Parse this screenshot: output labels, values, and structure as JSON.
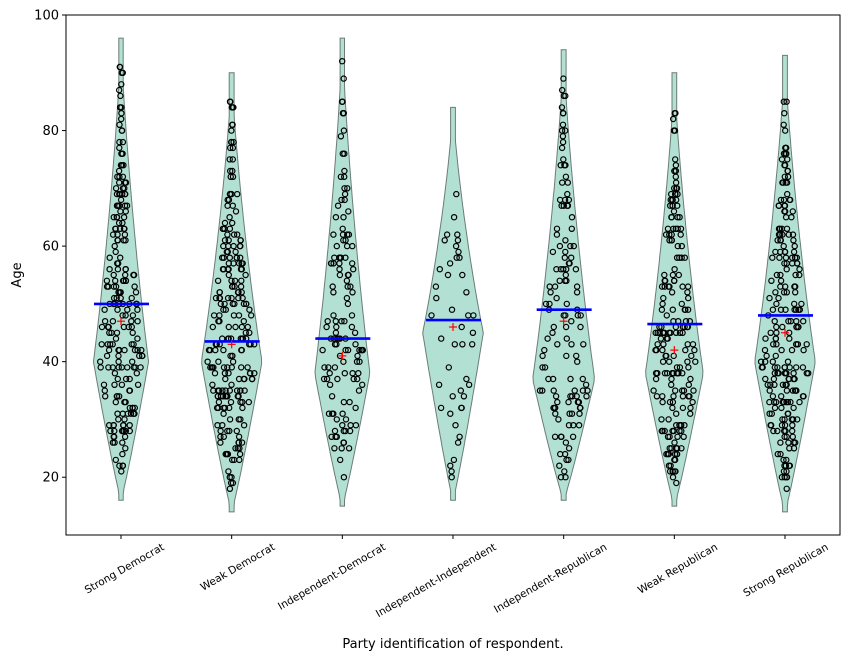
{
  "chart_data": {
    "type": "violin",
    "title": "",
    "xlabel": "Party identification of respondent.",
    "ylabel": "Age",
    "ylim": [
      10,
      100
    ],
    "yticks": [
      20,
      40,
      60,
      80,
      100
    ],
    "grid": false,
    "legend": null,
    "categories": [
      "Strong Democrat",
      "Weak Democrat",
      "Independent-Democrat",
      "Independent-Independent",
      "Independent-Republican",
      "Weak Republican",
      "Strong Republican"
    ],
    "series": [
      {
        "name": "Strong Democrat",
        "min": 16,
        "max": 96,
        "median": 50,
        "mean": 47,
        "point_count_approx": 220,
        "mode_age": 40,
        "max_half_width": 40
      },
      {
        "name": "Weak Democrat",
        "min": 14,
        "max": 90,
        "median": 43.5,
        "mean": 43,
        "point_count_approx": 230,
        "mode_age": 40,
        "max_half_width": 44
      },
      {
        "name": "Independent-Democrat",
        "min": 15,
        "max": 96,
        "median": 44,
        "mean": 41,
        "point_count_approx": 130,
        "mode_age": 38,
        "max_half_width": 40
      },
      {
        "name": "Independent-Independent",
        "min": 16,
        "max": 84,
        "median": 47.2,
        "mean": 46,
        "point_count_approx": 45,
        "mode_age": 45,
        "max_half_width": 44
      },
      {
        "name": "Independent-Republican",
        "min": 16,
        "max": 94,
        "median": 49,
        "mean": 47,
        "point_count_approx": 130,
        "mode_age": 37,
        "max_half_width": 45
      },
      {
        "name": "Weak Republican",
        "min": 15,
        "max": 90,
        "median": 46.5,
        "mean": 42,
        "point_count_approx": 200,
        "mode_age": 38,
        "max_half_width": 42
      },
      {
        "name": "Strong Republican",
        "min": 14,
        "max": 93,
        "median": 48,
        "mean": 45,
        "point_count_approx": 230,
        "mode_age": 40,
        "max_half_width": 44
      }
    ],
    "markers": {
      "median": {
        "style": "horizontal line",
        "color": "#0000ff"
      },
      "mean": {
        "style": "plus",
        "color": "#ff0000"
      },
      "points": {
        "style": "open circle",
        "color": "#000000"
      }
    },
    "colors": {
      "violin_fill": "#b2e0d2",
      "violin_edge": "#6b7c76"
    }
  }
}
